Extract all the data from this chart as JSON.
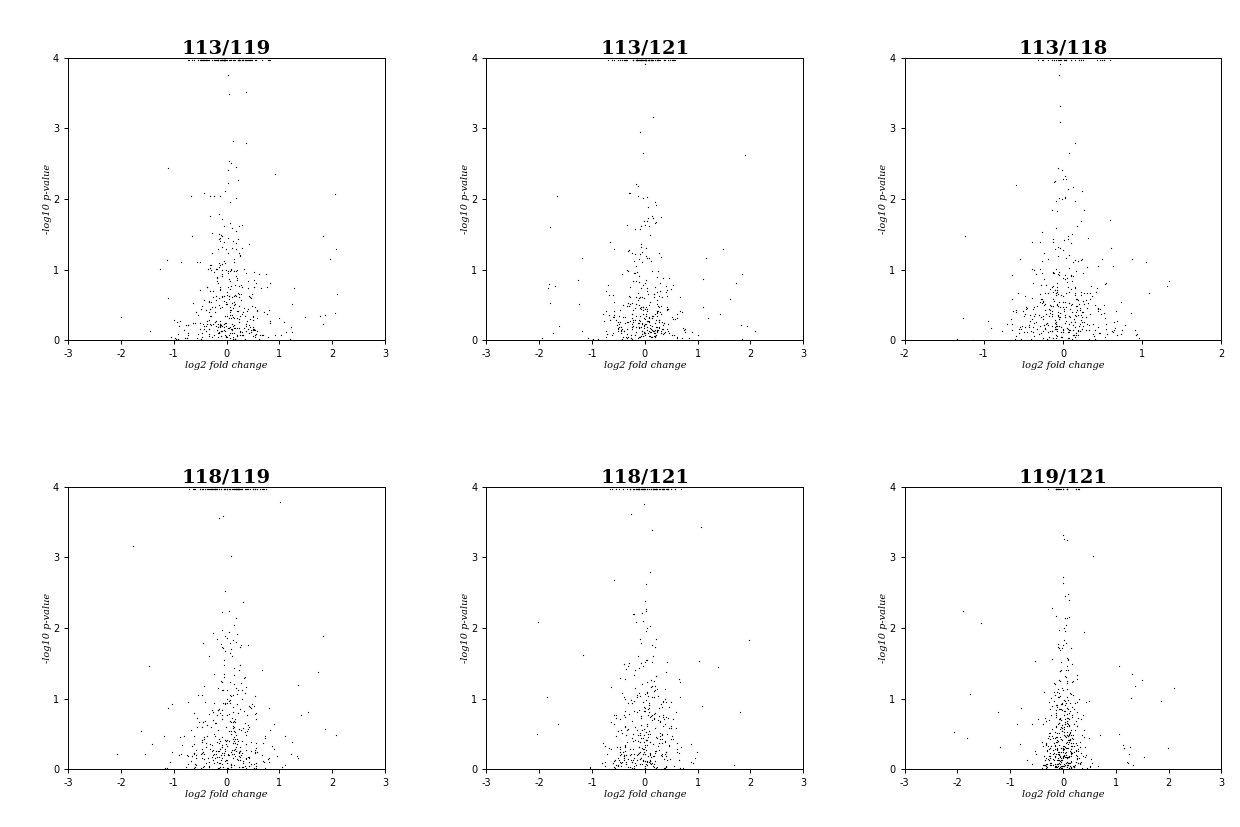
{
  "plots": [
    {
      "title": "113/119",
      "xlim": [
        -3,
        3
      ],
      "ylim": [
        0,
        4
      ],
      "xticks": [
        -3,
        -2,
        -1,
        0,
        1,
        2,
        3
      ],
      "x_sigma": 0.25,
      "n_capped": 80,
      "n_points": 350
    },
    {
      "title": "113/121",
      "xlim": [
        -3,
        3
      ],
      "ylim": [
        0,
        4
      ],
      "xticks": [
        -3,
        -2,
        -1,
        0,
        1,
        2,
        3
      ],
      "x_sigma": 0.22,
      "n_capped": 70,
      "n_points": 320
    },
    {
      "title": "113/118",
      "xlim": [
        -2,
        2
      ],
      "ylim": [
        0,
        4
      ],
      "xticks": [
        -2,
        -1,
        0,
        1,
        2
      ],
      "x_sigma": 0.18,
      "n_capped": 30,
      "n_points": 350
    },
    {
      "title": "118/119",
      "xlim": [
        -3,
        3
      ],
      "ylim": [
        0,
        4
      ],
      "xticks": [
        -3,
        -2,
        -1,
        0,
        1,
        2,
        3
      ],
      "x_sigma": 0.25,
      "n_capped": 75,
      "n_points": 330
    },
    {
      "title": "118/121",
      "xlim": [
        -3,
        3
      ],
      "ylim": [
        0,
        4
      ],
      "xticks": [
        -3,
        -2,
        -1,
        0,
        1,
        2,
        3
      ],
      "x_sigma": 0.22,
      "n_capped": 65,
      "n_points": 320
    },
    {
      "title": "119/121",
      "xlim": [
        -3,
        3
      ],
      "ylim": [
        0,
        4
      ],
      "xticks": [
        -3,
        -2,
        -1,
        0,
        1,
        2,
        3
      ],
      "x_sigma": 0.12,
      "n_capped": 20,
      "n_points": 380
    }
  ],
  "xlabel": "log2 fold change",
  "ylabel": "-log10 p-value",
  "dot_color": "#000000",
  "dot_size": 3.5,
  "background_color": "#ffffff",
  "title_fontsize": 14,
  "axis_label_fontsize": 7,
  "tick_fontsize": 7
}
